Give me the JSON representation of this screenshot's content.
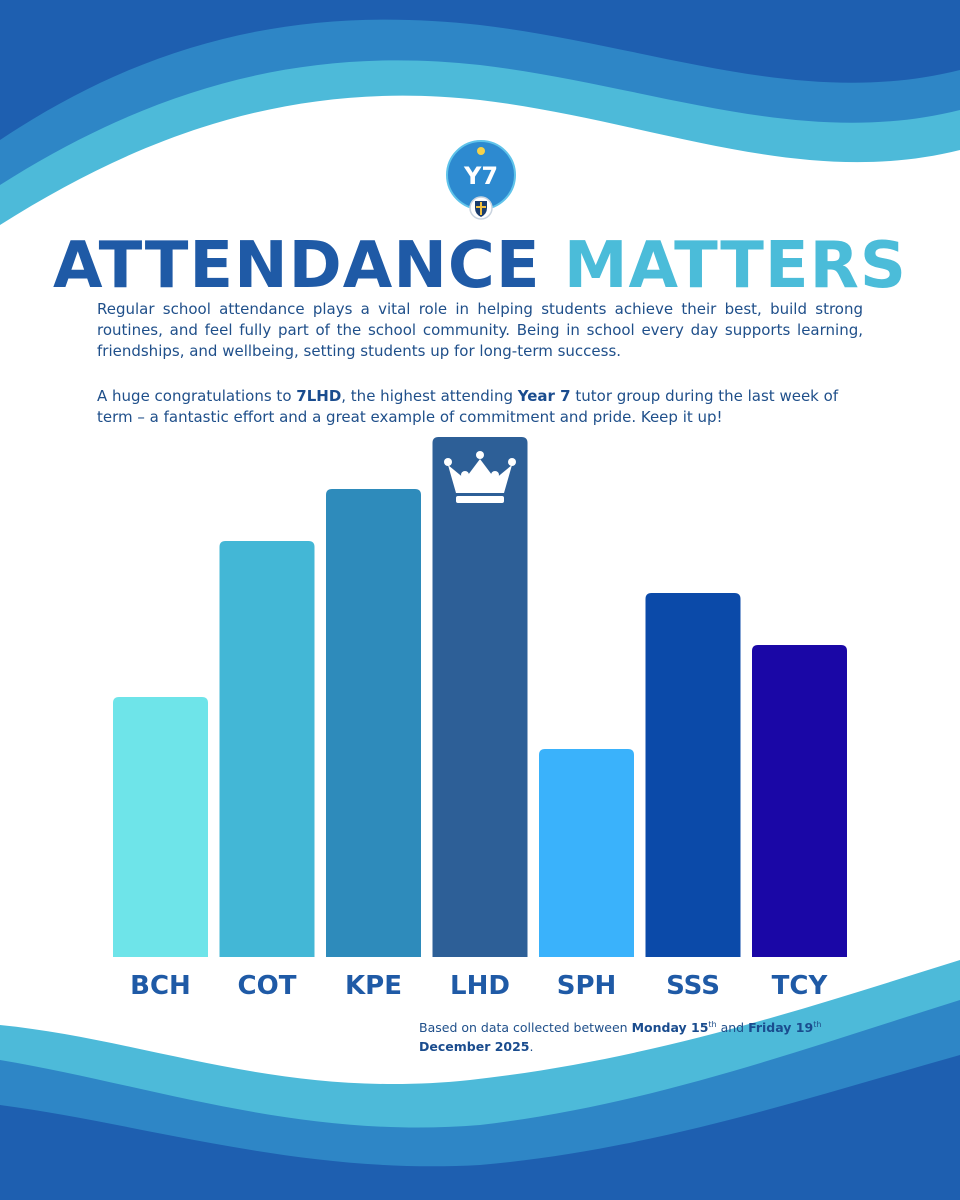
{
  "header": {
    "logo_text": "Y7",
    "title_part1": "ATTENDANCE",
    "title_part2": "MATTERS"
  },
  "intro": "Regular school attendance plays a vital role in helping students achieve their best, build strong routines, and feel fully part of the school community. Being in school every day supports learning, friendships, and wellbeing, setting students up for long-term success.",
  "congrats": {
    "p1": "A huge congratulations to ",
    "group": "7LHD",
    "p2": ", the highest attending ",
    "year": "Year 7",
    "p3": " tutor group during the last week of term – a fantastic effort and a great example of commitment and pride. Keep it up!"
  },
  "chart_data": {
    "type": "bar",
    "title": "",
    "categories": [
      "BCH",
      "COT",
      "KPE",
      "LHD",
      "SPH",
      "SSS",
      "TCY"
    ],
    "values": [
      50,
      80,
      90,
      100,
      40,
      70,
      60
    ],
    "colors": [
      "#6ee4e9",
      "#43b7d6",
      "#2e8bbb",
      "#2d5f97",
      "#3ab2fb",
      "#0b4aa9",
      "#1a07a6"
    ],
    "highlight": "LHD",
    "highlight_icon": "crown-icon",
    "ylim": [
      0,
      100
    ],
    "xlabel": "",
    "ylabel": "",
    "y_axis_visible": false,
    "grid": false
  },
  "footnote": {
    "p1": "Based on data collected between ",
    "d1": "Monday 15",
    "s1": "th",
    "p2": " and ",
    "d2": "Friday 19",
    "s2": "th",
    "d3": "December 2025",
    "p3": "."
  },
  "colors": {
    "primary": "#1f5aa6",
    "accent": "#4bbcd9",
    "wave_dark": "#1e5fb0",
    "wave_mid": "#2e86c6",
    "wave_light": "#4dbad9"
  }
}
